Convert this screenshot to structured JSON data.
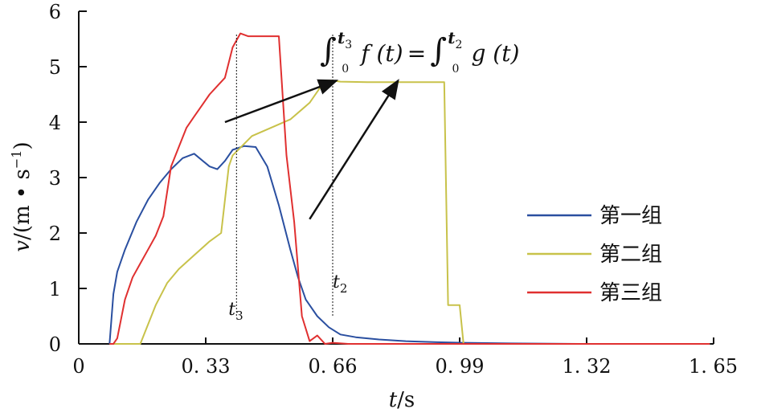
{
  "chart_data": {
    "type": "line",
    "xlabel": {
      "var": "t",
      "unit": "/s"
    },
    "ylabel": {
      "var": "v",
      "unit": "/(m • s",
      "exp": "−1",
      "close": ")"
    },
    "xlim": [
      0,
      1.65
    ],
    "ylim": [
      0,
      6
    ],
    "x_ticks": [
      0,
      0.33,
      0.66,
      0.99,
      1.32,
      1.65
    ],
    "x_tick_labels": [
      "0",
      "0. 33",
      "0. 66",
      "0. 99",
      "1. 32",
      "1. 65"
    ],
    "y_ticks": [
      0,
      1,
      2,
      3,
      4,
      5,
      6
    ],
    "y_tick_labels": [
      "0",
      "1",
      "2",
      "3",
      "4",
      "5",
      "6"
    ],
    "grid": false,
    "legend_position": "right",
    "series": [
      {
        "name": "第一组",
        "color": "#2a4fa0",
        "x": [
          0.08,
          0.09,
          0.1,
          0.12,
          0.15,
          0.18,
          0.21,
          0.24,
          0.27,
          0.3,
          0.34,
          0.36,
          0.38,
          0.4,
          0.43,
          0.46,
          0.49,
          0.52,
          0.55,
          0.57,
          0.59,
          0.62,
          0.65,
          0.68,
          0.72,
          0.78,
          0.85,
          0.93,
          1.0,
          1.1,
          1.3,
          1.5,
          1.64
        ],
        "y": [
          0.0,
          0.9,
          1.3,
          1.7,
          2.2,
          2.6,
          2.9,
          3.15,
          3.35,
          3.43,
          3.2,
          3.15,
          3.3,
          3.5,
          3.57,
          3.55,
          3.2,
          2.5,
          1.7,
          1.2,
          0.8,
          0.5,
          0.3,
          0.17,
          0.12,
          0.08,
          0.05,
          0.03,
          0.02,
          0.01,
          0.0,
          0.0,
          0.0
        ]
      },
      {
        "name": "第二组",
        "color": "#c8c24a",
        "x": [
          0.08,
          0.1,
          0.16,
          0.2,
          0.23,
          0.26,
          0.3,
          0.34,
          0.37,
          0.39,
          0.4,
          0.45,
          0.5,
          0.55,
          0.6,
          0.64,
          0.66,
          0.68,
          0.75,
          0.8,
          0.85,
          0.95,
          0.96,
          0.99,
          1.0,
          1.02,
          1.1,
          1.3,
          1.5,
          1.64
        ],
        "y": [
          0.0,
          0.0,
          0.0,
          0.7,
          1.1,
          1.35,
          1.6,
          1.85,
          2.0,
          3.2,
          3.4,
          3.75,
          3.9,
          4.05,
          4.35,
          4.75,
          4.75,
          4.73,
          4.72,
          4.72,
          4.72,
          4.72,
          0.7,
          0.7,
          0.0,
          0.0,
          0.0,
          0.0,
          0.0,
          0.0
        ]
      },
      {
        "name": "第三组",
        "color": "#e03030",
        "x": [
          0.08,
          0.09,
          0.1,
          0.12,
          0.14,
          0.16,
          0.18,
          0.2,
          0.22,
          0.24,
          0.26,
          0.28,
          0.3,
          0.32,
          0.34,
          0.36,
          0.38,
          0.4,
          0.42,
          0.44,
          0.46,
          0.48,
          0.5,
          0.52,
          0.54,
          0.56,
          0.58,
          0.6,
          0.62,
          0.64,
          0.66,
          0.7,
          0.8,
          0.9,
          1.0,
          1.1,
          1.3,
          1.5,
          1.64
        ],
        "y": [
          0.0,
          0.0,
          0.1,
          0.8,
          1.2,
          1.45,
          1.7,
          1.95,
          2.3,
          3.2,
          3.55,
          3.9,
          4.1,
          4.3,
          4.5,
          4.65,
          4.8,
          5.35,
          5.6,
          5.55,
          5.55,
          5.55,
          5.55,
          5.55,
          3.4,
          2.2,
          0.5,
          0.05,
          0.15,
          0.0,
          0.02,
          0.0,
          0.0,
          0.0,
          0.0,
          0.0,
          0.0,
          0.0,
          0.0
        ]
      }
    ],
    "markers": [
      {
        "x": 0.41,
        "label": "t",
        "sub": "3"
      },
      {
        "x": 0.66,
        "label": "t",
        "sub": "2"
      }
    ],
    "annotation": {
      "integral_sign": "∫",
      "lower1": "0",
      "upper1": "t",
      "upper1_sub": "3",
      "func1": "f (t)",
      "equals": "=",
      "lower2": "0",
      "upper2": "t",
      "upper2_sub": "2",
      "func2": "g (t)",
      "arrows": [
        {
          "from": [
            0.38,
            4.0
          ],
          "to": [
            0.67,
            4.75
          ]
        },
        {
          "from": [
            0.6,
            2.25
          ],
          "to": [
            0.83,
            4.75
          ]
        }
      ]
    }
  }
}
